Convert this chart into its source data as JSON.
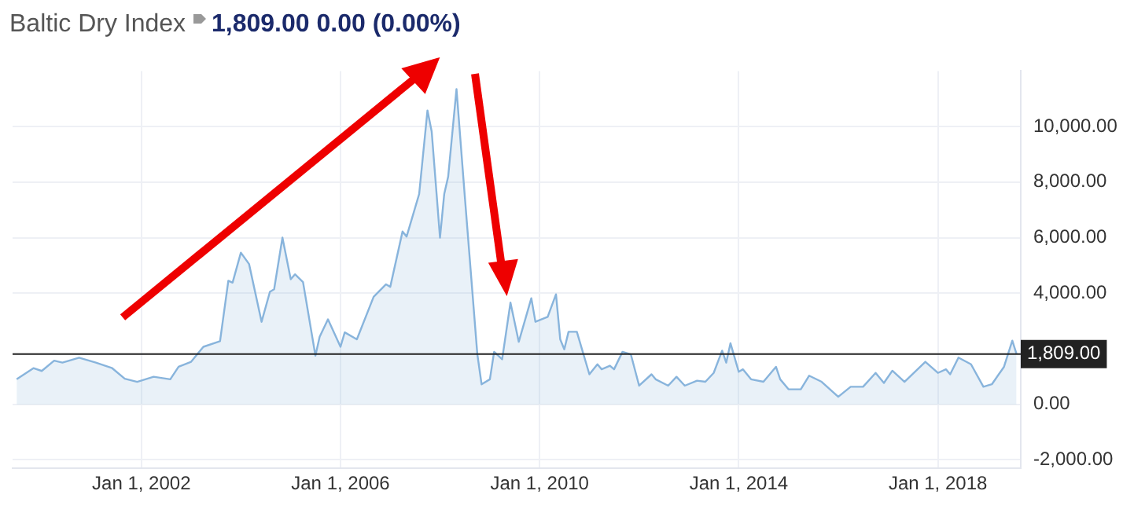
{
  "chart_data": {
    "type": "area",
    "title": "Baltic Dry Index",
    "subtitle": "1,809.00 0.00 (0.00%)",
    "x": [
      "1999-07",
      "1999-11",
      "2000-01",
      "2000-04",
      "2000-06",
      "2000-10",
      "2001-02",
      "2001-06",
      "2001-09",
      "2001-12",
      "2002-04",
      "2002-08",
      "2002-10",
      "2003-01",
      "2003-04",
      "2003-08",
      "2003-10",
      "2003-11",
      "2004-01",
      "2004-03",
      "2004-06",
      "2004-08",
      "2004-09",
      "2004-11",
      "2005-01",
      "2005-02",
      "2005-04",
      "2005-07",
      "2005-08",
      "2005-10",
      "2006-01",
      "2006-02",
      "2006-05",
      "2006-09",
      "2006-12",
      "2007-01",
      "2007-04",
      "2007-05",
      "2007-08",
      "2007-10",
      "2007-11",
      "2008-01",
      "2008-02",
      "2008-03",
      "2008-05",
      "2008-07",
      "2008-10",
      "2008-11",
      "2009-01",
      "2009-02",
      "2009-04",
      "2009-06",
      "2009-08",
      "2009-11",
      "2009-12",
      "2010-03",
      "2010-05",
      "2010-06",
      "2010-07",
      "2010-08",
      "2010-10",
      "2011-01",
      "2011-03",
      "2011-04",
      "2011-06",
      "2011-07",
      "2011-09",
      "2011-11",
      "2012-01",
      "2012-04",
      "2012-05",
      "2012-08",
      "2012-10",
      "2012-12",
      "2013-03",
      "2013-05",
      "2013-07",
      "2013-09",
      "2013-10",
      "2013-11",
      "2014-01",
      "2014-02",
      "2014-04",
      "2014-07",
      "2014-10",
      "2014-11",
      "2015-01",
      "2015-04",
      "2015-06",
      "2015-09",
      "2016-01",
      "2016-04",
      "2016-07",
      "2016-10",
      "2016-12",
      "2017-02",
      "2017-05",
      "2017-10",
      "2018-01",
      "2018-03",
      "2018-04",
      "2018-06",
      "2018-09",
      "2018-12",
      "2019-02",
      "2019-05",
      "2019-07",
      "2019-08"
    ],
    "series": [
      {
        "color": "#88b4dc",
        "values": [
          900,
          1300,
          1200,
          1570,
          1500,
          1680,
          1500,
          1300,
          920,
          810,
          990,
          900,
          1350,
          1530,
          2070,
          2270,
          4450,
          4380,
          5460,
          5050,
          2970,
          4050,
          4140,
          6000,
          4500,
          4680,
          4400,
          1750,
          2430,
          3060,
          2070,
          2590,
          2340,
          3870,
          4320,
          4230,
          6220,
          6040,
          7570,
          10580,
          9820,
          6000,
          7570,
          8200,
          11350,
          7480,
          1800,
          720,
          900,
          1890,
          1620,
          3660,
          2250,
          3820,
          2970,
          3150,
          3960,
          2340,
          1980,
          2610,
          2610,
          1080,
          1440,
          1260,
          1390,
          1260,
          1890,
          1800,
          670,
          1080,
          900,
          670,
          990,
          670,
          850,
          810,
          1130,
          1930,
          1500,
          2200,
          1170,
          1260,
          900,
          810,
          1350,
          900,
          540,
          540,
          1030,
          810,
          270,
          630,
          630,
          1130,
          770,
          1210,
          810,
          1530,
          1130,
          1260,
          1080,
          1680,
          1440,
          630,
          720,
          1350,
          2290,
          1809
        ]
      }
    ],
    "xlim": [
      "1999-06",
      "2019-09"
    ],
    "xticks": [
      {
        "value": "2002-01-01",
        "label": "Jan 1, 2002"
      },
      {
        "value": "2006-01-01",
        "label": "Jan 1, 2006"
      },
      {
        "value": "2010-01-01",
        "label": "Jan 1, 2010"
      },
      {
        "value": "2014-01-01",
        "label": "Jan 1, 2014"
      },
      {
        "value": "2018-01-01",
        "label": "Jan 1, 2018"
      }
    ],
    "ylim": [
      -2300,
      12000
    ],
    "yticks": [
      {
        "value": -2000,
        "label": "-2,000.00"
      },
      {
        "value": 0,
        "label": "0.00"
      },
      {
        "value": 4000,
        "label": "4,000.00"
      },
      {
        "value": 6000,
        "label": "6,000.00"
      },
      {
        "value": 8000,
        "label": "8,000.00"
      },
      {
        "value": 10000,
        "label": "10,000.00"
      }
    ],
    "ref_lines": [
      {
        "axis": "y",
        "value": 1809,
        "label": "1,809.00",
        "color": "#222222"
      }
    ],
    "grid": true,
    "legend": false,
    "marker": "none",
    "line_style": "solid"
  }
}
